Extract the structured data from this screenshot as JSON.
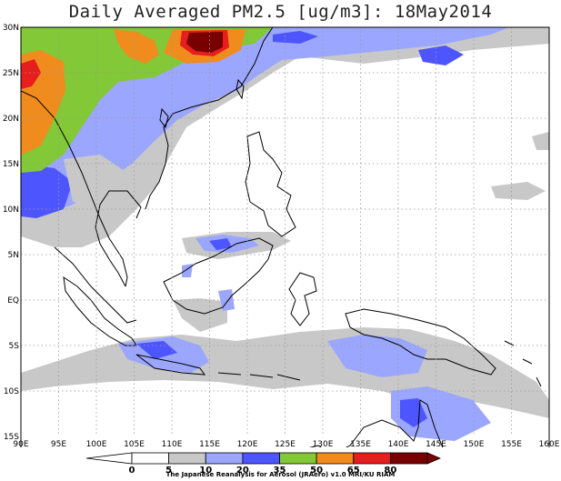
{
  "title": "Daily Averaged PM2.5 [ug/m3]: 18May2014",
  "map": {
    "lon_labels": [
      "90E",
      "95E",
      "100E",
      "105E",
      "110E",
      "115E",
      "120E",
      "125E",
      "130E",
      "135E",
      "140E",
      "145E",
      "150E",
      "155E",
      "160E"
    ],
    "lat_labels": [
      "30N",
      "25N",
      "20N",
      "15N",
      "10N",
      "5N",
      "EQ",
      "5S",
      "10S",
      "15S"
    ],
    "extent": {
      "lon": [
        90,
        160
      ],
      "lat": [
        -15,
        30
      ]
    },
    "gridlines": "dotted"
  },
  "colorbar": {
    "levels": [
      "0",
      "5",
      "10",
      "20",
      "35",
      "50",
      "65",
      "80"
    ],
    "colors": [
      "#ffffff",
      "#c8c8c8",
      "#9ba6ff",
      "#4d55ff",
      "#82c837",
      "#f08c1e",
      "#e61e1e",
      "#780000"
    ]
  },
  "credit": "The Japanese Reanalysis for Aerosol (JRAero) v1.0 MRI/KU RIAM"
}
